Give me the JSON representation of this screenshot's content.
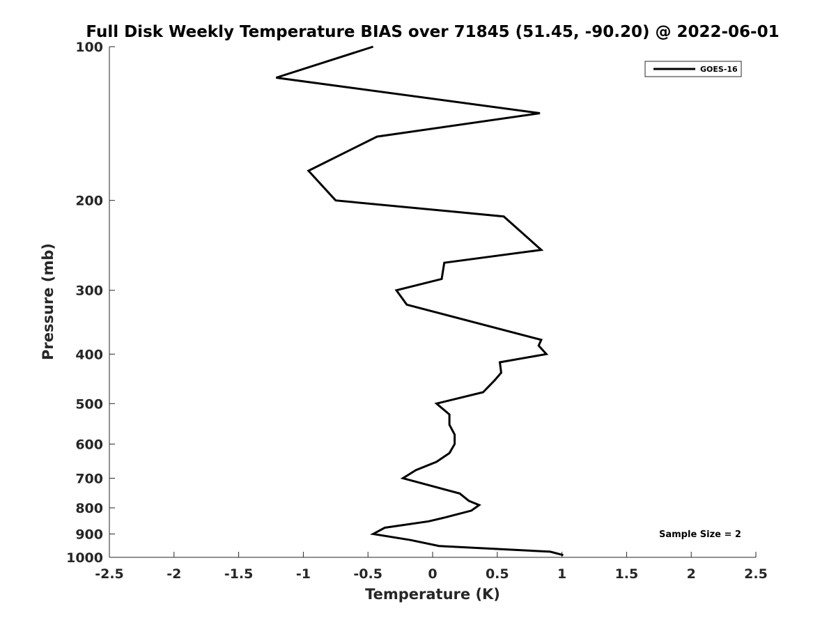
{
  "chart_data": {
    "type": "line",
    "title": "Full Disk Weekly Temperature BIAS over 71845 (51.45, -90.20) @ 2022-06-01",
    "xlabel": "Temperature (K)",
    "ylabel": "Pressure (mb)",
    "xlim": [
      -2.5,
      2.5
    ],
    "ylim": [
      100,
      1000
    ],
    "y_scale": "log",
    "y_direction": "reversed",
    "x_ticks": [
      -2.5,
      -2,
      -1.5,
      -1,
      -0.5,
      0,
      0.5,
      1,
      1.5,
      2,
      2.5
    ],
    "x_tick_labels": [
      "-2.5",
      "-2",
      "-1.5",
      "-1",
      "-0.5",
      "0",
      "0.5",
      "1",
      "1.5",
      "2",
      "2.5"
    ],
    "y_ticks": [
      100,
      200,
      300,
      400,
      500,
      600,
      700,
      800,
      900,
      1000
    ],
    "y_tick_labels": [
      "100",
      "200",
      "300",
      "400",
      "500",
      "600",
      "700",
      "800",
      "900",
      "1000"
    ],
    "grid": false,
    "legend": "top-right",
    "annotation": "Sample Size = 2",
    "series": [
      {
        "name": "GOES-16",
        "color": "#000000",
        "points": [
          {
            "x": -0.46,
            "p": 100
          },
          {
            "x": -1.21,
            "p": 115
          },
          {
            "x": 0.83,
            "p": 135
          },
          {
            "x": -0.43,
            "p": 150
          },
          {
            "x": -0.96,
            "p": 175
          },
          {
            "x": -0.75,
            "p": 200
          },
          {
            "x": 0.55,
            "p": 215
          },
          {
            "x": 0.84,
            "p": 250
          },
          {
            "x": 0.09,
            "p": 265
          },
          {
            "x": 0.07,
            "p": 285
          },
          {
            "x": -0.28,
            "p": 300
          },
          {
            "x": -0.2,
            "p": 320
          },
          {
            "x": 0.84,
            "p": 375
          },
          {
            "x": 0.82,
            "p": 385
          },
          {
            "x": 0.88,
            "p": 400
          },
          {
            "x": 0.52,
            "p": 415
          },
          {
            "x": 0.53,
            "p": 435
          },
          {
            "x": 0.48,
            "p": 450
          },
          {
            "x": 0.39,
            "p": 475
          },
          {
            "x": 0.03,
            "p": 500
          },
          {
            "x": 0.13,
            "p": 525
          },
          {
            "x": 0.13,
            "p": 550
          },
          {
            "x": 0.17,
            "p": 575
          },
          {
            "x": 0.17,
            "p": 600
          },
          {
            "x": 0.13,
            "p": 625
          },
          {
            "x": 0.03,
            "p": 650
          },
          {
            "x": -0.13,
            "p": 675
          },
          {
            "x": -0.23,
            "p": 700
          },
          {
            "x": 0.21,
            "p": 750
          },
          {
            "x": 0.28,
            "p": 775
          },
          {
            "x": 0.36,
            "p": 790
          },
          {
            "x": 0.3,
            "p": 810
          },
          {
            "x": 0.1,
            "p": 835
          },
          {
            "x": -0.03,
            "p": 850
          },
          {
            "x": -0.37,
            "p": 875
          },
          {
            "x": -0.46,
            "p": 900
          },
          {
            "x": -0.17,
            "p": 925
          },
          {
            "x": 0.05,
            "p": 950
          },
          {
            "x": 0.91,
            "p": 975
          },
          {
            "x": 1.01,
            "p": 990
          }
        ]
      }
    ]
  }
}
